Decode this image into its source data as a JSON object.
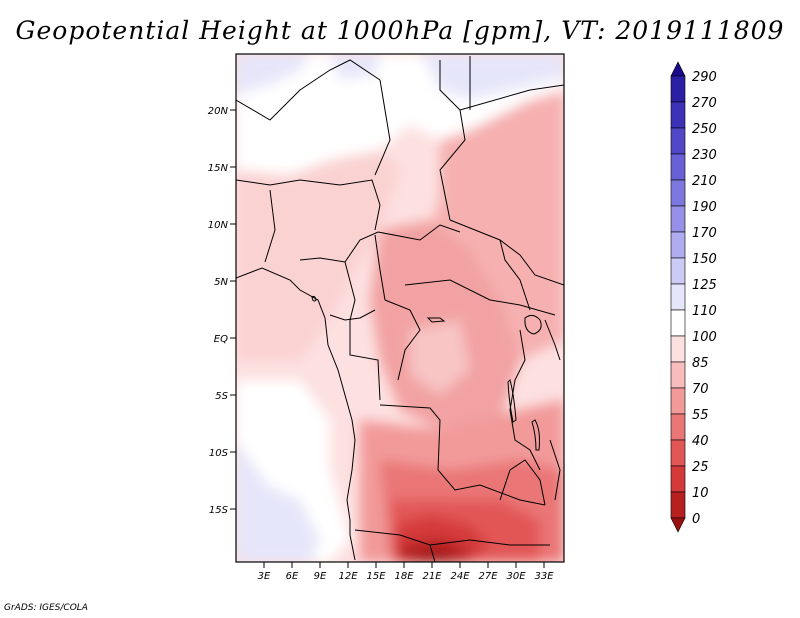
{
  "title": "Geopotential Height at 1000hPa [gpm], VT: 2019111809",
  "credit": "GrADS: IGES/COLA",
  "map": {
    "lat_labels": [
      "20N",
      "15N",
      "10N",
      "5N",
      "EQ",
      "5S",
      "10S",
      "15S"
    ],
    "lon_labels": [
      "3E",
      "6E",
      "9E",
      "12E",
      "15E",
      "18E",
      "21E",
      "24E",
      "27E",
      "30E",
      "33E"
    ]
  },
  "colorbar": {
    "levels": [
      "290",
      "270",
      "250",
      "230",
      "210",
      "190",
      "170",
      "150",
      "125",
      "110",
      "100",
      "85",
      "70",
      "55",
      "40",
      "25",
      "10",
      "0"
    ],
    "colors": [
      "#1a0a8c",
      "#2b1fa3",
      "#3c32b8",
      "#5148c8",
      "#6760d6",
      "#7d78e0",
      "#9690e8",
      "#b0acf0",
      "#cccbf6",
      "#e6e6fa",
      "#ffffff",
      "#fde0e0",
      "#f8bcbc",
      "#f29a9a",
      "#ea7676",
      "#e25656",
      "#d43a3a",
      "#b82020",
      "#9a1010"
    ]
  }
}
